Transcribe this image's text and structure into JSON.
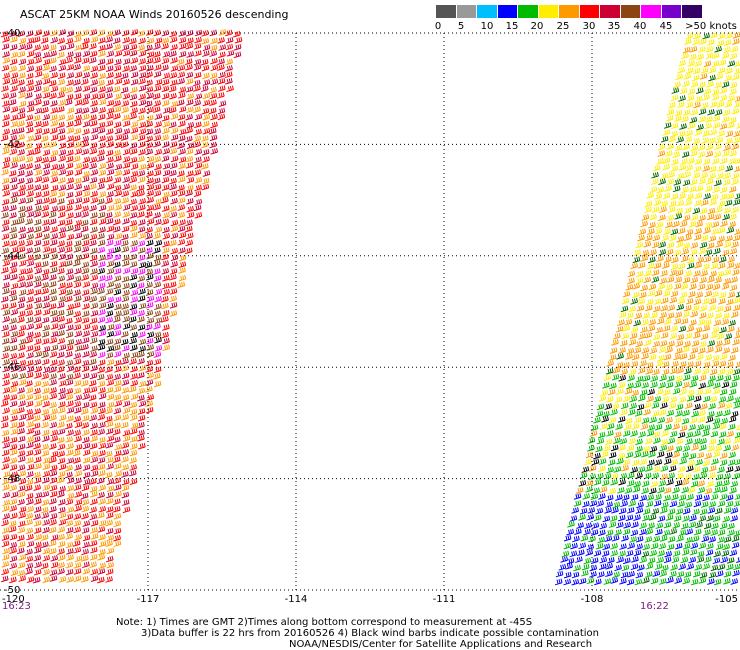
{
  "title": "ASCAT 25KM NOAA Winds 20160526 descending",
  "colorbar": {
    "labels": [
      "0",
      "5",
      "10",
      "15",
      "20",
      "25",
      "30",
      "35",
      "40",
      "45",
      ">50 knots"
    ],
    "colors": [
      "#555555",
      "#999999",
      "#00bfff",
      "#0000ff",
      "#00bb00",
      "#ffee00",
      "#ff9900",
      "#ff0000",
      "#cc0033",
      "#8b4513",
      "#ff00ff",
      "#7700cc",
      "#330066"
    ]
  },
  "map": {
    "lon_ticks": [
      "-120",
      "-117",
      "-114",
      "-111",
      "-108",
      "-105"
    ],
    "lat_ticks": [
      "-40",
      "-42",
      "-44",
      "-46",
      "-48",
      "-50"
    ],
    "lon_range": [
      -120,
      -105
    ],
    "lat_range": [
      -50,
      -40
    ]
  },
  "swaths": {
    "left": {
      "color_mix": [
        "#ff0000",
        "#cc0033",
        "#ff9900",
        "#8b4513",
        "#000000",
        "#ff00ff"
      ]
    },
    "right": {
      "color_mix": [
        "#ffee00",
        "#ff9900",
        "#00bb00",
        "#0000ff",
        "#006600",
        "#000000"
      ]
    }
  },
  "times": {
    "left": "16:23",
    "right": "16:22"
  },
  "notes": {
    "line1": "Note: 1) Times are GMT 2)Times along bottom correspond to measurement at -45S",
    "line2": "3)Data buffer is 22 hrs from 20160526 4) Black wind barbs indicate possible contamination",
    "line3": "NOAA/NESDIS/Center for Satellite Applications and Research"
  }
}
